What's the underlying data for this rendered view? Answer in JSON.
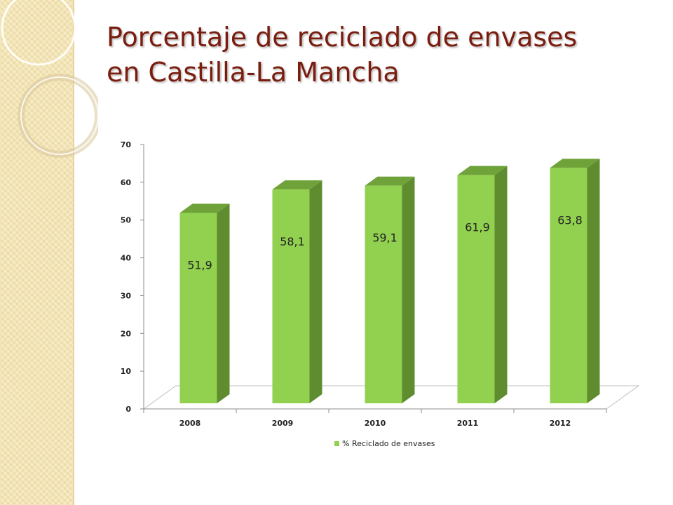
{
  "page": {
    "title_line1": "Porcentaje de reciclado de envases",
    "title_line2": "en Castilla-La Mancha"
  },
  "colors": {
    "title": "#7a1d0f",
    "bar_front": "#92d050",
    "bar_side": "#5e8c2e",
    "bar_top": "#6fa33a",
    "strip": "#f3e4b3"
  },
  "chart_data": {
    "type": "bar",
    "title": "",
    "xlabel": "",
    "ylabel": "",
    "categories": [
      "2008",
      "2009",
      "2010",
      "2011",
      "2012"
    ],
    "series": [
      {
        "name": "% Reciclado de envases",
        "values": [
          51.9,
          58.1,
          59.1,
          61.9,
          63.8
        ],
        "labels": [
          "51,9",
          "58,1",
          "59,1",
          "61,9",
          "63,8"
        ]
      }
    ],
    "ylim": [
      0,
      70
    ],
    "yticks": [
      0,
      10,
      20,
      30,
      40,
      50,
      60,
      70
    ],
    "grid": false,
    "legend": "bottom",
    "style": "3d"
  }
}
